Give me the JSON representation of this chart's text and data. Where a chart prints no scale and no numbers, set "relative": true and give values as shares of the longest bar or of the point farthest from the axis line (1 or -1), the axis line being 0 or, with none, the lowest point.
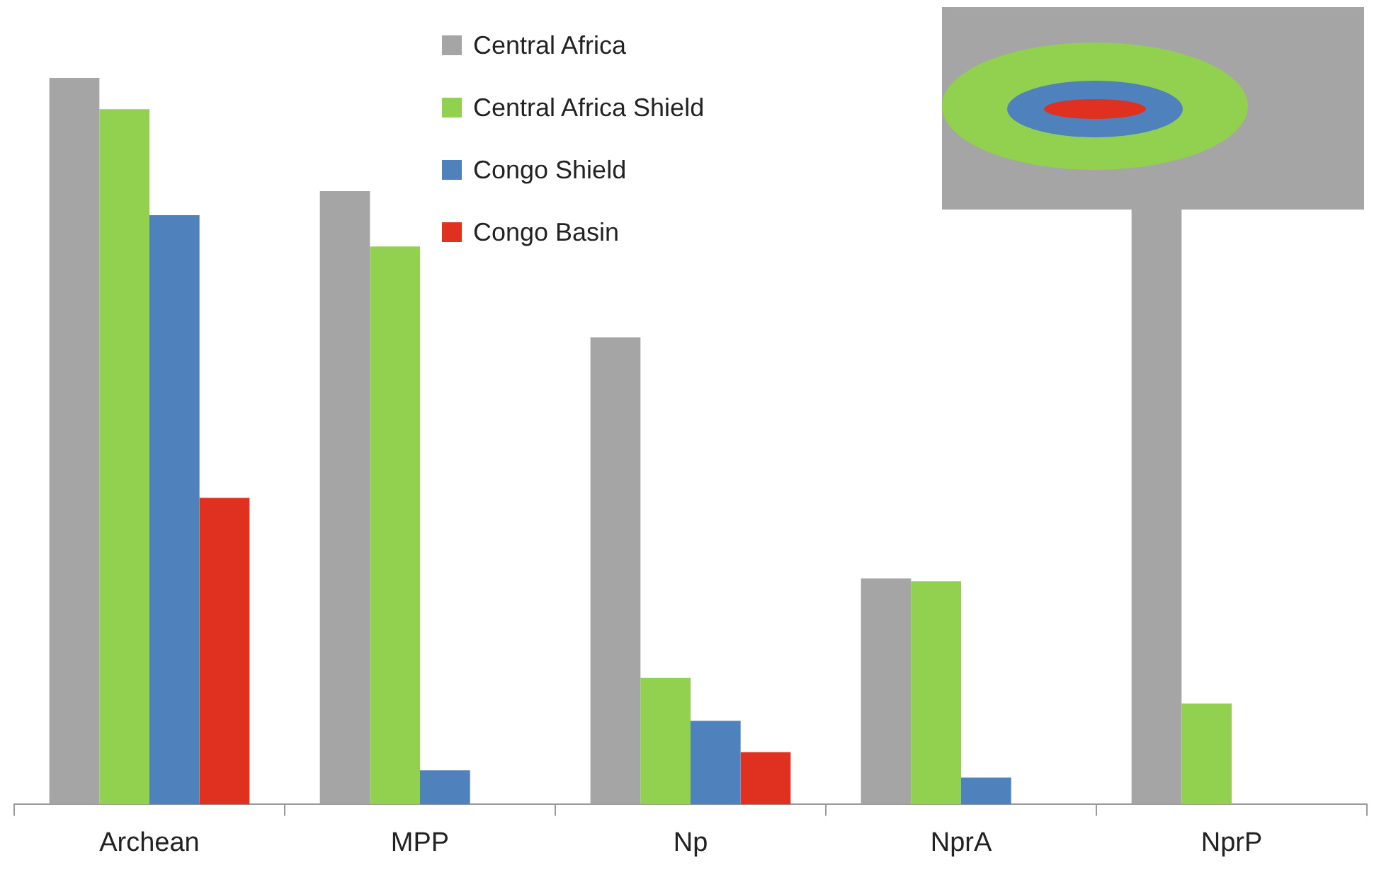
{
  "chart_data": {
    "type": "bar",
    "relative": true,
    "legend": "top",
    "grid": false,
    "categories": [
      "Archean",
      "MPP",
      "Np",
      "NprA",
      "NprP"
    ],
    "series": [
      {
        "name": "Central Africa",
        "color": "#a5a5a5",
        "values": [
          1,
          0.844,
          0.643,
          0.311,
          0.82
        ]
      },
      {
        "name": "Central Africa Shield",
        "color": "#92d050",
        "values": [
          0.957,
          0.768,
          0.174,
          0.307,
          0.139
        ]
      },
      {
        "name": "Congo Shield",
        "color": "#4f81bd",
        "values": [
          0.811,
          0.047,
          0.115,
          0.037,
          null
        ]
      },
      {
        "name": "Congo Basin",
        "color": "#e03020",
        "values": [
          0.422,
          null,
          0.072,
          null,
          null
        ]
      }
    ]
  }
}
